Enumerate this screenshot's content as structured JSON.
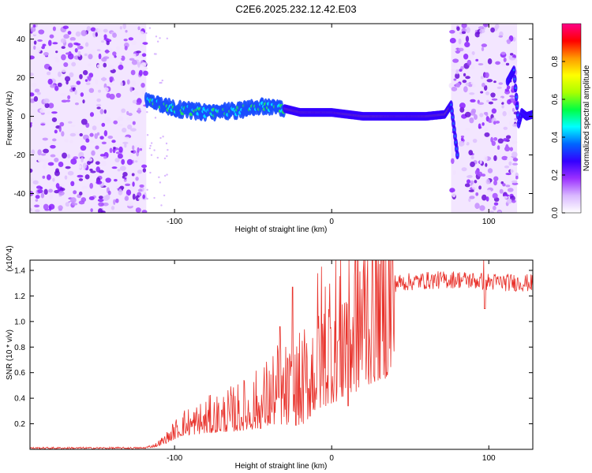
{
  "title": "C2E6.2025.232.12.42.E03",
  "chart_data": [
    {
      "type": "heatmap",
      "xlabel": "Height of straight line (km)",
      "ylabel": "Frequency (Hz)",
      "xlim": [
        -192,
        128
      ],
      "ylim": [
        -50,
        48
      ],
      "xticks": [
        -100,
        0,
        100
      ],
      "xtick_labels": [
        "-100",
        "0",
        "100"
      ],
      "yticks": [
        -40,
        -20,
        0,
        20,
        40
      ],
      "ytick_labels": [
        "-40",
        "-20",
        "0",
        "20",
        "40"
      ],
      "colorbar": {
        "label": "Normalized spectral amplitude",
        "range": [
          0,
          1
        ],
        "ticks": [
          0.0,
          0.2,
          0.4,
          0.6,
          0.8
        ],
        "tick_labels": [
          "0.0",
          "0.2",
          "0.4",
          "0.6",
          "0.8"
        ],
        "colors": [
          "#ffffff",
          "#d9b8ff",
          "#9b30ff",
          "#3300ff",
          "#0066ff",
          "#00ffff",
          "#00ff44",
          "#aaff00",
          "#ffff00",
          "#ff9900",
          "#ff0000",
          "#ff0088"
        ]
      },
      "noise_regions_km": [
        [
          -192,
          -118
        ],
        [
          76,
          118
        ]
      ],
      "signal_ridge": {
        "x": [
          -118,
          -100,
          -80,
          -60,
          -45,
          -30,
          -20,
          0,
          20,
          40,
          60,
          72,
          76,
          80,
          112,
          116,
          119,
          121,
          124,
          128
        ],
        "y": [
          8,
          4,
          2,
          3,
          5,
          4,
          2,
          2,
          0,
          0,
          0,
          1,
          6,
          -20,
          18,
          24,
          -4,
          2,
          0,
          1
        ]
      },
      "grid": false
    },
    {
      "type": "line",
      "xlabel": "Height of straight line (km)",
      "ylabel": "SNR (10 * v/v)",
      "y_multiplier": "(x10^4)",
      "xlim": [
        -192,
        128
      ],
      "ylim": [
        0,
        1.48
      ],
      "xticks": [
        -100,
        0,
        100
      ],
      "xtick_labels": [
        "-100",
        "0",
        "100"
      ],
      "yticks": [
        0.2,
        0.4,
        0.6,
        0.8,
        1.0,
        1.2,
        1.4
      ],
      "ytick_labels": [
        "0.2",
        "0.4",
        "0.6",
        "0.8",
        "1.0",
        "1.2",
        "1.4"
      ],
      "series_color": "#e8312a",
      "envelope": {
        "x": [
          -192,
          -120,
          -112,
          -105,
          -95,
          -80,
          -60,
          -45,
          -35,
          -25,
          -18,
          -10,
          0,
          10,
          20,
          30,
          40,
          60,
          80,
          100,
          128
        ],
        "y": [
          0.01,
          0.01,
          0.03,
          0.08,
          0.18,
          0.22,
          0.27,
          0.33,
          0.42,
          0.4,
          0.45,
          0.68,
          0.82,
          0.92,
          1.1,
          1.23,
          1.3,
          1.32,
          1.33,
          1.31,
          1.3
        ]
      },
      "grid": false
    }
  ]
}
